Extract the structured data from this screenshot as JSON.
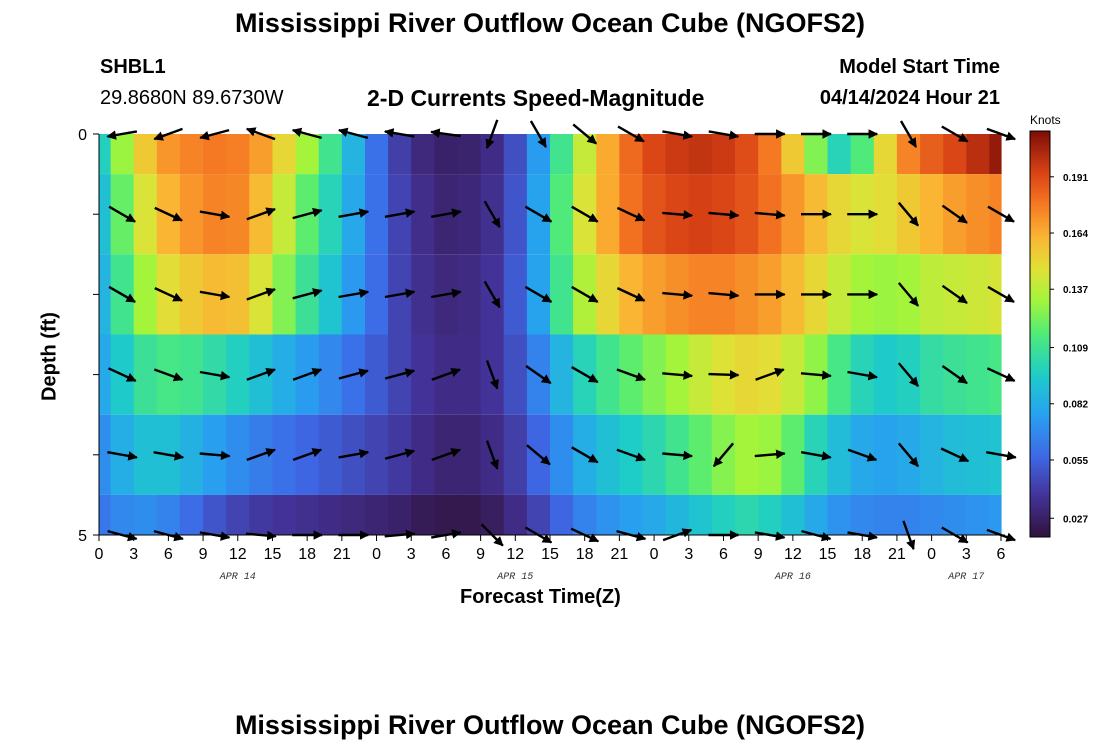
{
  "header": {
    "title": "Mississippi River Outflow Ocean Cube (NGOFS2)",
    "station_id": "SHBL1",
    "station_coords": "29.8680N  89.6730W",
    "subtitle": "2-D Currents Speed-Magnitude",
    "model_start_label": "Model Start Time",
    "model_start_value": "04/14/2024 Hour 21"
  },
  "footer": {
    "title": "Mississippi River Outflow Ocean Cube (NGOFS2)"
  },
  "chart_data": {
    "type": "heatmap",
    "title": "2-D Currents Speed-Magnitude",
    "xlabel": "Forecast Time(Z)",
    "ylabel": "Depth (ft)",
    "colorbar_label": "Knots",
    "colorbar_ticks": [
      "0.191",
      "0.164",
      "0.137",
      "0.109",
      "0.082",
      "0.055",
      "0.027"
    ],
    "colorbar_tick_values": [
      0.191,
      0.164,
      0.137,
      0.109,
      0.082,
      0.055,
      0.027
    ],
    "colorbar_range": [
      0.018,
      0.213
    ],
    "x_tick_labels": [
      "0",
      "3",
      "6",
      "9",
      "12",
      "15",
      "18",
      "21",
      "0",
      "3",
      "6",
      "9",
      "12",
      "15",
      "18",
      "21",
      "0",
      "3",
      "6",
      "9",
      "12",
      "15",
      "18",
      "21",
      "0",
      "3",
      "6"
    ],
    "x_range_hours": [
      0,
      78
    ],
    "date_labels": [
      {
        "hour": 12,
        "text": "APR 14"
      },
      {
        "hour": 36,
        "text": "APR 15"
      },
      {
        "hour": 60,
        "text": "APR 16"
      },
      {
        "hour": 75,
        "text": "APR 17"
      }
    ],
    "y_tick_labels": [
      "0",
      "5"
    ],
    "y_range_ft": [
      0,
      5
    ],
    "depth_levels_ft": [
      0,
      1,
      2,
      3,
      4,
      5
    ],
    "hours": [
      0,
      2,
      4,
      6,
      8,
      10,
      12,
      14,
      16,
      18,
      20,
      22,
      24,
      26,
      28,
      30,
      32,
      34,
      36,
      38,
      40,
      42,
      44,
      46,
      48,
      50,
      52,
      54,
      56,
      58,
      60,
      62,
      64,
      66,
      68,
      70,
      72,
      74,
      76,
      78
    ],
    "speed_knots": [
      [
        0.098,
        0.13,
        0.155,
        0.17,
        0.175,
        0.178,
        0.176,
        0.168,
        0.15,
        0.132,
        0.11,
        0.085,
        0.06,
        0.042,
        0.032,
        0.028,
        0.029,
        0.034,
        0.048,
        0.075,
        0.11,
        0.14,
        0.165,
        0.182,
        0.192,
        0.196,
        0.198,
        0.196,
        0.19,
        0.178,
        0.155,
        0.125,
        0.1,
        0.115,
        0.15,
        0.175,
        0.185,
        0.192,
        0.2,
        0.208
      ],
      [
        0.09,
        0.12,
        0.145,
        0.162,
        0.17,
        0.175,
        0.174,
        0.16,
        0.14,
        0.118,
        0.1,
        0.08,
        0.06,
        0.044,
        0.035,
        0.03,
        0.031,
        0.036,
        0.05,
        0.078,
        0.115,
        0.145,
        0.165,
        0.18,
        0.188,
        0.192,
        0.194,
        0.192,
        0.188,
        0.18,
        0.17,
        0.16,
        0.15,
        0.145,
        0.148,
        0.155,
        0.162,
        0.168,
        0.172,
        0.175
      ],
      [
        0.085,
        0.11,
        0.132,
        0.148,
        0.155,
        0.16,
        0.158,
        0.145,
        0.125,
        0.108,
        0.092,
        0.074,
        0.058,
        0.044,
        0.036,
        0.032,
        0.033,
        0.038,
        0.052,
        0.078,
        0.11,
        0.135,
        0.15,
        0.162,
        0.168,
        0.172,
        0.175,
        0.175,
        0.172,
        0.168,
        0.16,
        0.15,
        0.14,
        0.132,
        0.13,
        0.132,
        0.138,
        0.14,
        0.142,
        0.144
      ],
      [
        0.08,
        0.095,
        0.108,
        0.112,
        0.11,
        0.104,
        0.098,
        0.09,
        0.082,
        0.075,
        0.068,
        0.06,
        0.052,
        0.044,
        0.038,
        0.034,
        0.034,
        0.038,
        0.048,
        0.066,
        0.085,
        0.1,
        0.11,
        0.118,
        0.125,
        0.132,
        0.14,
        0.146,
        0.15,
        0.148,
        0.14,
        0.128,
        0.112,
        0.1,
        0.095,
        0.098,
        0.105,
        0.108,
        0.11,
        0.112
      ],
      [
        0.07,
        0.082,
        0.09,
        0.09,
        0.084,
        0.076,
        0.07,
        0.064,
        0.06,
        0.056,
        0.052,
        0.048,
        0.044,
        0.04,
        0.034,
        0.03,
        0.03,
        0.034,
        0.042,
        0.056,
        0.07,
        0.082,
        0.09,
        0.096,
        0.102,
        0.11,
        0.118,
        0.126,
        0.132,
        0.13,
        0.118,
        0.1,
        0.088,
        0.08,
        0.078,
        0.08,
        0.085,
        0.088,
        0.09,
        0.092
      ],
      [
        0.062,
        0.068,
        0.07,
        0.066,
        0.058,
        0.05,
        0.044,
        0.04,
        0.038,
        0.036,
        0.034,
        0.032,
        0.03,
        0.028,
        0.024,
        0.022,
        0.022,
        0.026,
        0.034,
        0.044,
        0.056,
        0.066,
        0.072,
        0.076,
        0.08,
        0.086,
        0.092,
        0.098,
        0.102,
        0.098,
        0.09,
        0.08,
        0.072,
        0.068,
        0.066,
        0.066,
        0.068,
        0.07,
        0.072,
        0.074
      ]
    ],
    "vector_hours": [
      2,
      6,
      10,
      14,
      18,
      22,
      26,
      30,
      34,
      38,
      42,
      46,
      50,
      54,
      58,
      62,
      66,
      70,
      74,
      78
    ],
    "vector_depths_ft": [
      0,
      1,
      2,
      3,
      4,
      5
    ],
    "vector_direction_deg": [
      [
        260,
        250,
        255,
        290,
        285,
        285,
        280,
        278,
        200,
        150,
        130,
        120,
        100,
        100,
        90,
        90,
        90,
        150,
        120,
        110
      ],
      [
        120,
        115,
        100,
        70,
        75,
        80,
        80,
        80,
        150,
        120,
        120,
        115,
        95,
        95,
        95,
        90,
        90,
        140,
        125,
        120
      ],
      [
        120,
        115,
        100,
        70,
        75,
        80,
        80,
        80,
        150,
        120,
        120,
        115,
        95,
        95,
        90,
        90,
        90,
        140,
        125,
        120
      ],
      [
        115,
        110,
        100,
        70,
        70,
        75,
        75,
        70,
        160,
        125,
        120,
        110,
        95,
        92,
        70,
        95,
        100,
        140,
        125,
        115
      ],
      [
        100,
        100,
        95,
        70,
        70,
        80,
        75,
        70,
        160,
        130,
        120,
        110,
        95,
        220,
        85,
        100,
        110,
        140,
        115,
        100
      ],
      [
        105,
        105,
        100,
        95,
        90,
        90,
        85,
        80,
        135,
        120,
        115,
        105,
        70,
        90,
        100,
        105,
        100,
        160,
        120,
        110
      ]
    ],
    "grid": false
  }
}
